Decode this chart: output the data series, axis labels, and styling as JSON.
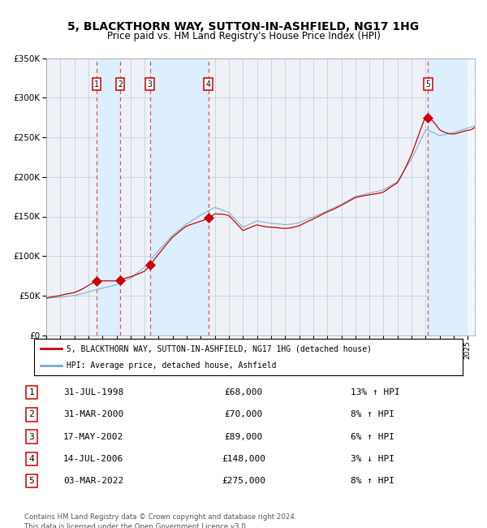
{
  "title": "5, BLACKTHORN WAY, SUTTON-IN-ASHFIELD, NG17 1HG",
  "subtitle": "Price paid vs. HM Land Registry's House Price Index (HPI)",
  "legend_label_red": "5, BLACKTHORN WAY, SUTTON-IN-ASHFIELD, NG17 1HG (detached house)",
  "legend_label_blue": "HPI: Average price, detached house, Ashfield",
  "footer": "Contains HM Land Registry data © Crown copyright and database right 2024.\nThis data is licensed under the Open Government Licence v3.0.",
  "sales": [
    {
      "num": 1,
      "date": "31-JUL-1998",
      "year": 1998.58,
      "price": 68000,
      "hpi_pct": "13% ↑ HPI"
    },
    {
      "num": 2,
      "date": "31-MAR-2000",
      "year": 2000.25,
      "price": 70000,
      "hpi_pct": "8% ↑ HPI"
    },
    {
      "num": 3,
      "date": "17-MAY-2002",
      "year": 2002.38,
      "price": 89000,
      "hpi_pct": "6% ↑ HPI"
    },
    {
      "num": 4,
      "date": "14-JUL-2006",
      "year": 2006.54,
      "price": 148000,
      "hpi_pct": "3% ↓ HPI"
    },
    {
      "num": 5,
      "date": "03-MAR-2022",
      "year": 2022.17,
      "price": 275000,
      "hpi_pct": "8% ↑ HPI"
    }
  ],
  "ylim": [
    0,
    350000
  ],
  "xlim_start": 1995.0,
  "xlim_end": 2025.5,
  "red_color": "#cc0000",
  "blue_color": "#7aabcf",
  "shade_color": "#ddeeff",
  "bg_color": "#eef2f7",
  "grid_color": "#bbccdd",
  "dashed_color": "#dd4444",
  "hatch_color": "#cccccc"
}
